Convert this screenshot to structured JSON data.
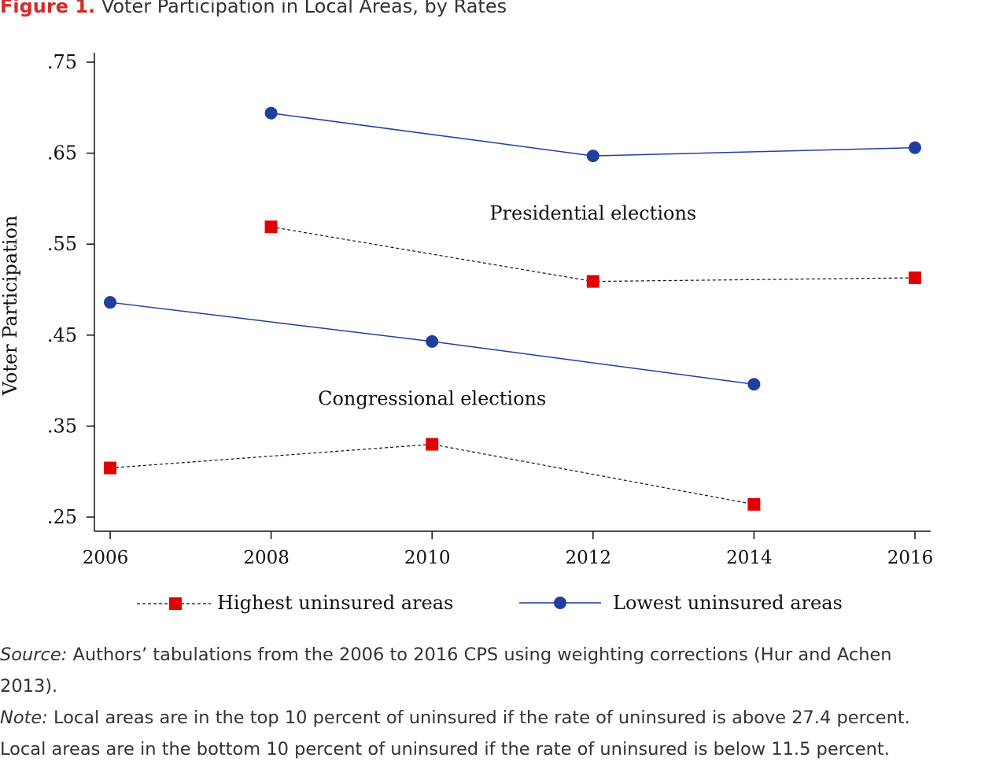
{
  "figure": {
    "label": "Figure 1.",
    "title": "Voter Participation in Local Areas, by Rates"
  },
  "chart_data": {
    "type": "line",
    "ylabel": "Voter Participation",
    "xlabel": "",
    "x_ticks": [
      "2006",
      "2008",
      "2010",
      "2012",
      "2014",
      "2016"
    ],
    "y_ticks": [
      ".25",
      ".35",
      ".45",
      ".55",
      ".65",
      ".75"
    ],
    "xlim": [
      2006,
      2016
    ],
    "ylim": [
      0.235,
      0.76
    ],
    "grid": false,
    "legend_position": "bottom",
    "series": [
      {
        "name": "Highest uninsured areas",
        "group": "Presidential elections",
        "style": "dashed",
        "marker": "square",
        "color": "#e00000",
        "x": [
          2008,
          2012,
          2016
        ],
        "y": [
          0.569,
          0.509,
          0.513
        ]
      },
      {
        "name": "Lowest uninsured areas",
        "group": "Presidential elections",
        "style": "solid",
        "marker": "circle",
        "color": "#1f3f9f",
        "x": [
          2008,
          2012,
          2016
        ],
        "y": [
          0.694,
          0.647,
          0.656
        ]
      },
      {
        "name": "Lowest uninsured areas",
        "group": "Congressional elections",
        "style": "solid",
        "marker": "circle",
        "color": "#1f3f9f",
        "x": [
          2006,
          2010,
          2014
        ],
        "y": [
          0.486,
          0.443,
          0.396
        ]
      },
      {
        "name": "Highest uninsured areas",
        "group": "Congressional elections",
        "style": "dashed",
        "marker": "square",
        "color": "#e00000",
        "x": [
          2006,
          2010,
          2014
        ],
        "y": [
          0.304,
          0.33,
          0.264
        ]
      }
    ],
    "annotations": [
      {
        "text": "Presidential elections",
        "x": 2012,
        "y": 0.584
      },
      {
        "text": "Congressional elections",
        "x": 2010,
        "y": 0.38
      }
    ],
    "legend": [
      {
        "label": "Highest uninsured areas",
        "style": "dashed",
        "marker": "square",
        "color": "#e00000"
      },
      {
        "label": "Lowest uninsured areas",
        "style": "solid",
        "marker": "circle",
        "color": "#1f3f9f"
      }
    ]
  },
  "notes": {
    "source_label": "Source:",
    "source_line1": " Authors’ tabulations from the 2006 to 2016 CPS using weighting corrections (Hur and Achen",
    "source_line2": "2013).",
    "note_label": "Note:",
    "note_line1": " Local areas are in the top 10 percent of uninsured if the rate of uninsured is above 27.4 percent.",
    "note_line2": "Local areas are in the bottom 10 percent of uninsured if the rate of uninsured is below 11.5 percent."
  }
}
